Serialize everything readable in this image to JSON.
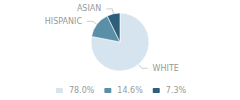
{
  "chart_data": {
    "type": "pie",
    "categories": [
      "WHITE",
      "HISPANIC",
      "ASIAN"
    ],
    "values": [
      78.0,
      14.6,
      7.3
    ],
    "value_labels": [
      "78.0%",
      "14.6%",
      "7.3%"
    ],
    "colors": [
      "#d6e4f0",
      "#5b8fa8",
      "#2e5f7a"
    ],
    "legend": "bottom"
  }
}
